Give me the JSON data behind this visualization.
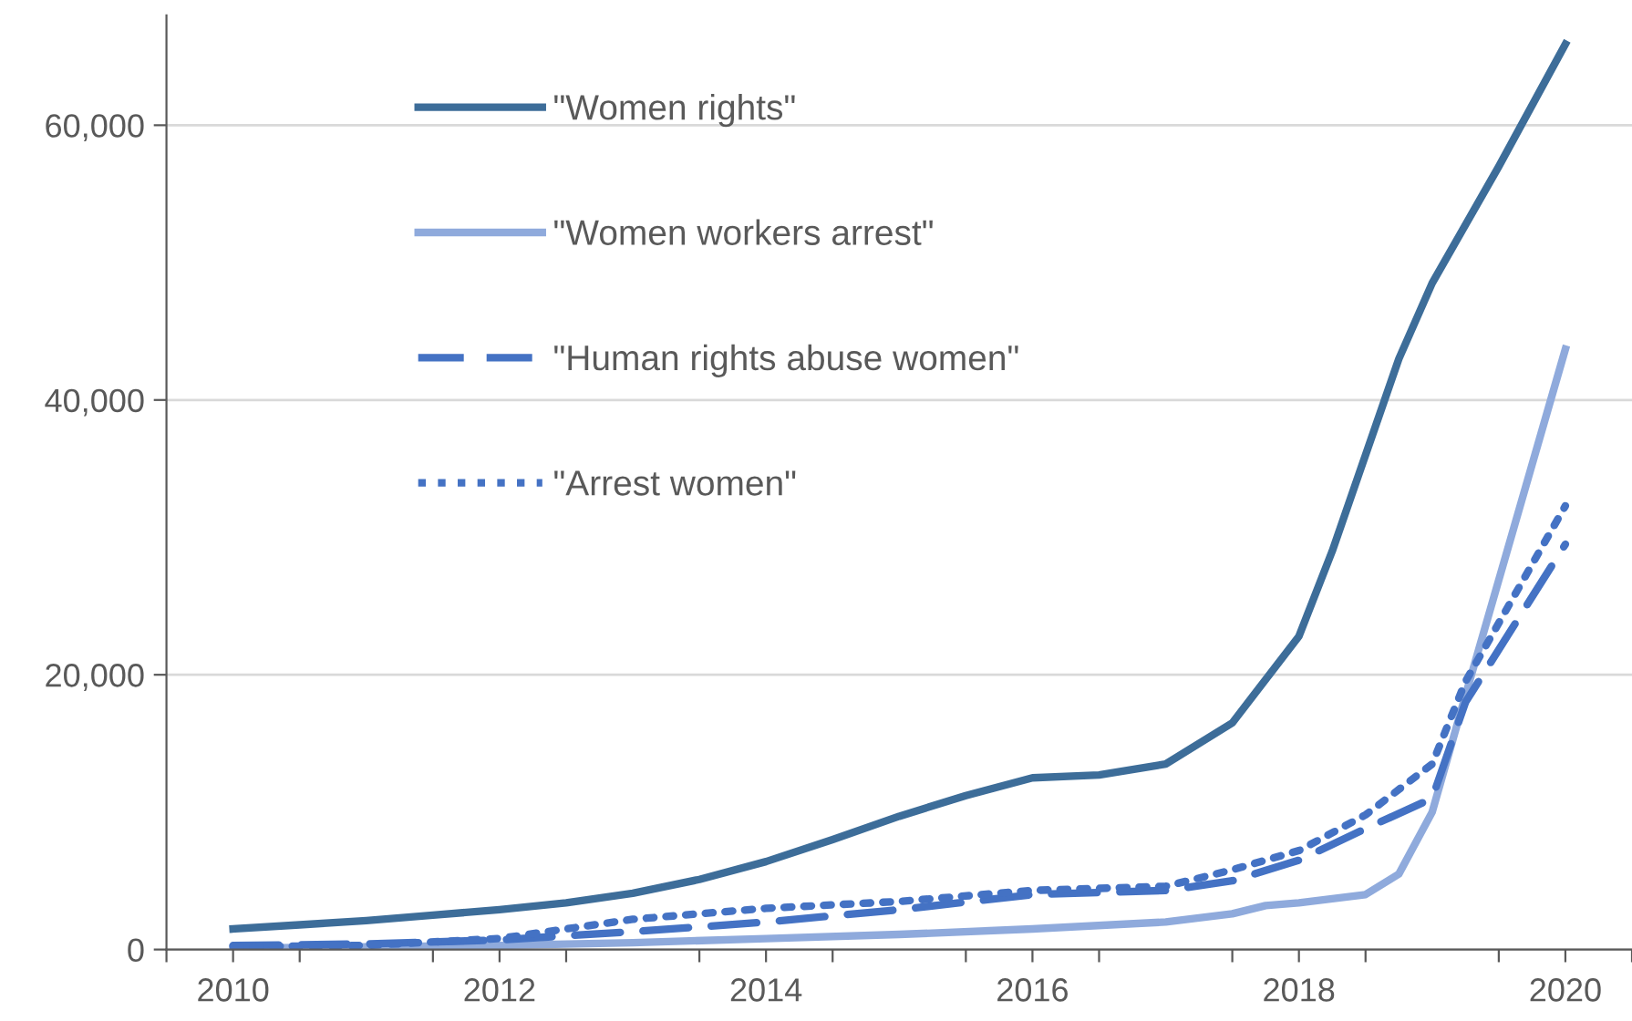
{
  "chart_data": {
    "type": "line",
    "series": [
      {
        "name": "\"Women rights\"",
        "color": "#3d6d99",
        "line_style": "solid",
        "x": [
          2010,
          2010.5,
          2011,
          2011.5,
          2012,
          2012.5,
          2013,
          2013.5,
          2014,
          2014.5,
          2015,
          2015.5,
          2016,
          2016.5,
          2017,
          2017.5,
          2018,
          2018.25,
          2018.5,
          2018.75,
          2019,
          2019.5,
          2020
        ],
        "values": [
          1500,
          1800,
          2100,
          2500,
          2900,
          3400,
          4100,
          5100,
          6400,
          8000,
          9700,
          11200,
          12500,
          12700,
          13500,
          16500,
          22800,
          29000,
          36000,
          43000,
          48500,
          57000,
          65900
        ]
      },
      {
        "name": "\"Women workers arrest\"",
        "color": "#8faadc",
        "line_style": "solid",
        "x": [
          2010,
          2011,
          2012,
          2013,
          2014,
          2015,
          2016,
          2017,
          2017.5,
          2017.75,
          2018,
          2018.5,
          2018.75,
          2019,
          2019.25,
          2020
        ],
        "values": [
          100,
          200,
          300,
          500,
          800,
          1100,
          1500,
          2000,
          2600,
          3200,
          3400,
          4000,
          5500,
          10000,
          18500,
          43700
        ]
      },
      {
        "name": "\"Human rights abuse women\"",
        "color": "#4472c4",
        "line_style": "dashed",
        "x": [
          2010,
          2011,
          2012,
          2013,
          2014,
          2015,
          2016,
          2017,
          2017.5,
          2018,
          2018.5,
          2019,
          2019.25,
          2020
        ],
        "values": [
          300,
          400,
          700,
          1300,
          2000,
          2900,
          4000,
          4300,
          5000,
          6500,
          8800,
          11000,
          18000,
          29500
        ]
      },
      {
        "name": "\"Arrest women\"",
        "color": "#4472c4",
        "line_style": "dotted",
        "x": [
          2010,
          2011,
          2012,
          2013,
          2014,
          2015,
          2016,
          2017,
          2017.5,
          2018,
          2018.5,
          2019,
          2019.25,
          2020
        ],
        "values": [
          200,
          300,
          800,
          2200,
          3000,
          3500,
          4300,
          4600,
          5800,
          7200,
          9800,
          13500,
          19500,
          32300
        ]
      }
    ],
    "xlim": [
      2009.5,
      2020.5
    ],
    "xticks": [
      {
        "value": 2009.5,
        "label": null
      },
      {
        "value": 2010,
        "label": "2010"
      },
      {
        "value": 2010.5,
        "label": null
      },
      {
        "value": 2011.5,
        "label": null
      },
      {
        "value": 2012,
        "label": "2012"
      },
      {
        "value": 2012.5,
        "label": null
      },
      {
        "value": 2013.5,
        "label": null
      },
      {
        "value": 2014,
        "label": "2014"
      },
      {
        "value": 2014.5,
        "label": null
      },
      {
        "value": 2015.5,
        "label": null
      },
      {
        "value": 2016,
        "label": "2016"
      },
      {
        "value": 2016.5,
        "label": null
      },
      {
        "value": 2017.5,
        "label": null
      },
      {
        "value": 2018,
        "label": "2018"
      },
      {
        "value": 2018.5,
        "label": null
      },
      {
        "value": 2019.5,
        "label": null
      },
      {
        "value": 2020,
        "label": "2020"
      },
      {
        "value": 2020.5,
        "label": null
      }
    ],
    "ylim": [
      0,
      68000
    ],
    "yticks": [
      {
        "value": 0,
        "label": "0"
      },
      {
        "value": 20000,
        "label": "20,000"
      },
      {
        "value": 40000,
        "label": "40,000"
      },
      {
        "value": 60000,
        "label": "60,000"
      }
    ],
    "grid": "y",
    "legend": "top",
    "marker": "none"
  }
}
